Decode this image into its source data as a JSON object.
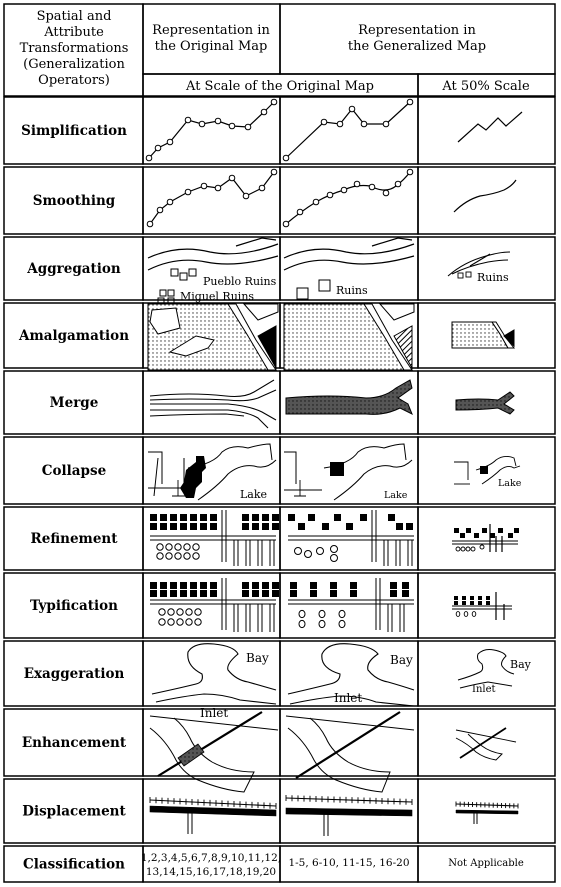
{
  "header": {
    "operator_col": [
      "Spatial and",
      "Attribute",
      "Transformations",
      "(Generalization",
      "Operators)"
    ],
    "original_col": [
      "Representation in",
      "the Original Map"
    ],
    "generalized_col": [
      "Representation in",
      "the Generalized Map"
    ],
    "scale_original": "At Scale of the Original Map",
    "scale_50": "At 50% Scale"
  },
  "operators": [
    "Simplification",
    "Smoothing",
    "Aggregation",
    "Amalgamation",
    "Merge",
    "Collapse",
    "Refinement",
    "Typification",
    "Exaggeration",
    "Enhancement",
    "Displacement",
    "Classification"
  ],
  "labels": {
    "pueblo_ruins": "Pueblo Ruins",
    "miguel_ruins": "Miguel Ruins",
    "ruins": "Ruins",
    "lake": "Lake",
    "bay": "Bay",
    "inlet": "Inlet"
  },
  "classification": {
    "original": [
      "1,2,3,4,5,6,7,8,9,10,11,12,",
      "13,14,15,16,17,18,19,20"
    ],
    "generalized": "1-5, 6-10, 11-15, 16-20",
    "scale_50": "Not Applicable"
  }
}
